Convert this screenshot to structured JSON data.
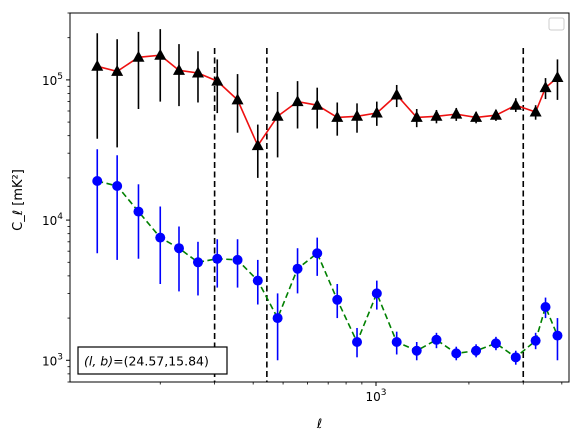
{
  "chart_data": {
    "type": "line",
    "title": "",
    "xlabel": "ℓ",
    "ylabel": "C_ℓ  [mK²]",
    "xscale": "log",
    "yscale": "log",
    "xlim": [
      102,
      4220
    ],
    "ylim": [
      700,
      300000
    ],
    "x_ticks": [
      {
        "value": 1000,
        "base": "10",
        "exp": "3"
      }
    ],
    "y_ticks": [
      {
        "value": 1000,
        "base": "10",
        "exp": "3"
      },
      {
        "value": 10000,
        "base": "10",
        "exp": "4"
      },
      {
        "value": 100000,
        "base": "10",
        "exp": "5"
      }
    ],
    "grid": false,
    "legend": {
      "position": "upper right",
      "entries": []
    },
    "vlines": [
      300,
      443,
      3000
    ],
    "annotation": {
      "position": "lower left",
      "text": "(l, b)=(24.57,15.84)",
      "math_part": "(l, b)",
      "plain_part": "=(24.57,15.84)"
    },
    "series": [
      {
        "marker": "triangle",
        "marker_color": "#000000",
        "line_color": "#ee1111",
        "line_style": "solid",
        "errorbar_color": "#000000",
        "points": [
          {
            "x": 125,
            "y": 125000,
            "lo": 38000,
            "hi": 215000
          },
          {
            "x": 145,
            "y": 115000,
            "lo": 33000,
            "hi": 195000
          },
          {
            "x": 170,
            "y": 145000,
            "lo": 62000,
            "hi": 220000
          },
          {
            "x": 200,
            "y": 150000,
            "lo": 70000,
            "hi": 230000
          },
          {
            "x": 230,
            "y": 117000,
            "lo": 65000,
            "hi": 180000
          },
          {
            "x": 265,
            "y": 112000,
            "lo": 69000,
            "hi": 160000
          },
          {
            "x": 306,
            "y": 98000,
            "lo": 58000,
            "hi": 140000
          },
          {
            "x": 356,
            "y": 72000,
            "lo": 42000,
            "hi": 110000
          },
          {
            "x": 414,
            "y": 34000,
            "lo": 20000,
            "hi": 48000
          },
          {
            "x": 480,
            "y": 55000,
            "lo": 28000,
            "hi": 82000
          },
          {
            "x": 557,
            "y": 70000,
            "lo": 45000,
            "hi": 98000
          },
          {
            "x": 645,
            "y": 66000,
            "lo": 45000,
            "hi": 88000
          },
          {
            "x": 749,
            "y": 54000,
            "lo": 40000,
            "hi": 69000
          },
          {
            "x": 868,
            "y": 55000,
            "lo": 42000,
            "hi": 68000
          },
          {
            "x": 1006,
            "y": 58000,
            "lo": 47000,
            "hi": 70000
          },
          {
            "x": 1167,
            "y": 78000,
            "lo": 64000,
            "hi": 92000
          },
          {
            "x": 1355,
            "y": 54000,
            "lo": 46000,
            "hi": 62000
          },
          {
            "x": 1570,
            "y": 55000,
            "lo": 49000,
            "hi": 61000
          },
          {
            "x": 1820,
            "y": 57000,
            "lo": 51000,
            "hi": 63000
          },
          {
            "x": 2110,
            "y": 54000,
            "lo": 49000,
            "hi": 59000
          },
          {
            "x": 2447,
            "y": 56000,
            "lo": 51000,
            "hi": 61000
          },
          {
            "x": 2837,
            "y": 66000,
            "lo": 59000,
            "hi": 74000
          },
          {
            "x": 3290,
            "y": 59000,
            "lo": 52000,
            "hi": 66000
          },
          {
            "x": 3542,
            "y": 88000,
            "lo": 73000,
            "hi": 103000
          },
          {
            "x": 3872,
            "y": 104000,
            "lo": 72000,
            "hi": 140000
          }
        ]
      },
      {
        "marker": "circle",
        "marker_color": "#0000ff",
        "line_color": "#008000",
        "line_style": "dashed",
        "errorbar_color": "#0000ff",
        "points": [
          {
            "x": 125,
            "y": 19000,
            "lo": 5800,
            "hi": 32000
          },
          {
            "x": 145,
            "y": 17500,
            "lo": 5200,
            "hi": 29000
          },
          {
            "x": 170,
            "y": 11500,
            "lo": 5300,
            "hi": 18000
          },
          {
            "x": 200,
            "y": 7500,
            "lo": 3500,
            "hi": 12500
          },
          {
            "x": 230,
            "y": 6300,
            "lo": 3100,
            "hi": 9000
          },
          {
            "x": 265,
            "y": 5000,
            "lo": 2900,
            "hi": 7000
          },
          {
            "x": 306,
            "y": 5300,
            "lo": 3300,
            "hi": 7300
          },
          {
            "x": 356,
            "y": 5200,
            "lo": 3300,
            "hi": 7300
          },
          {
            "x": 414,
            "y": 3700,
            "lo": 2500,
            "hi": 5200
          },
          {
            "x": 480,
            "y": 2000,
            "lo": 1000,
            "hi": 3000
          },
          {
            "x": 557,
            "y": 4500,
            "lo": 3000,
            "hi": 6300
          },
          {
            "x": 645,
            "y": 5800,
            "lo": 4000,
            "hi": 7500
          },
          {
            "x": 749,
            "y": 2700,
            "lo": 2000,
            "hi": 3500
          },
          {
            "x": 868,
            "y": 1350,
            "lo": 1050,
            "hi": 1700
          },
          {
            "x": 1006,
            "y": 3000,
            "lo": 2300,
            "hi": 3700
          },
          {
            "x": 1167,
            "y": 1350,
            "lo": 1100,
            "hi": 1600
          },
          {
            "x": 1355,
            "y": 1170,
            "lo": 1000,
            "hi": 1350
          },
          {
            "x": 1570,
            "y": 1400,
            "lo": 1220,
            "hi": 1570
          },
          {
            "x": 1820,
            "y": 1120,
            "lo": 1000,
            "hi": 1250
          },
          {
            "x": 2110,
            "y": 1170,
            "lo": 1050,
            "hi": 1300
          },
          {
            "x": 2447,
            "y": 1320,
            "lo": 1180,
            "hi": 1470
          },
          {
            "x": 2837,
            "y": 1050,
            "lo": 930,
            "hi": 1170
          },
          {
            "x": 3290,
            "y": 1380,
            "lo": 1200,
            "hi": 1570
          },
          {
            "x": 3542,
            "y": 2400,
            "lo": 2000,
            "hi": 2800
          },
          {
            "x": 3872,
            "y": 1500,
            "lo": 1000,
            "hi": 2000
          }
        ]
      }
    ]
  }
}
